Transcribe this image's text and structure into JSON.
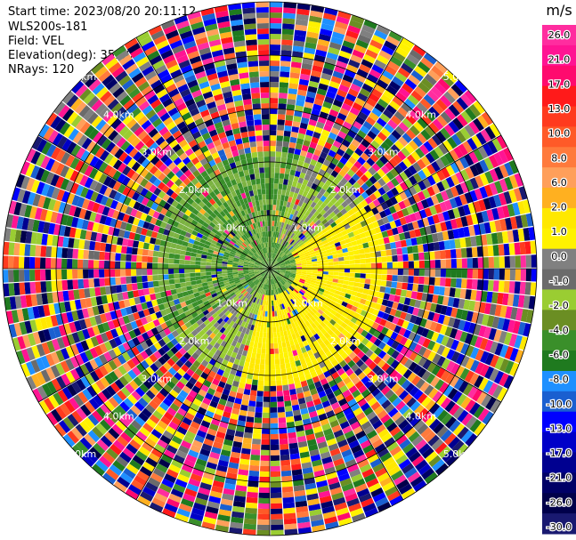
{
  "header": {
    "start_time": "Start time: 2023/08/20 20:11:12",
    "instrument": "WLS200s-181",
    "field": "Field: VEL",
    "elevation": "Elevation(deg): 35.30",
    "nrays": "NRays: 120"
  },
  "colorbar": {
    "unit": "m/s",
    "ticks": [
      "26.0",
      "21.0",
      "17.0",
      "13.0",
      "10.0",
      "8.0",
      "6.0",
      "2.0",
      "1.0",
      "0.0",
      "-1.0",
      "-2.0",
      "-4.0",
      "-6.0",
      "-8.0",
      "-10.0",
      "-13.0",
      "-17.0",
      "-21.0",
      "-26.0",
      "-30.0"
    ],
    "colors": [
      "#ff2d9f",
      "#ff1493",
      "#ff0a6e",
      "#ff1a1a",
      "#ff3a1e",
      "#ff5a28",
      "#ff7a3c",
      "#ff9f5a",
      "#ffb020",
      "#ffe800",
      "#fff200",
      "#808080",
      "#6b6b6b",
      "#9acd32",
      "#6b8e23",
      "#3a8f2a",
      "#1f7a1f",
      "#1e90ff",
      "#1a5fd0",
      "#0000ff",
      "#0000c8",
      "#000090",
      "#000066",
      "#00004a",
      "#191970"
    ]
  },
  "chart_data": {
    "type": "heatmap",
    "title": "",
    "field": "VEL",
    "units": "m/s",
    "nrays": 120,
    "elevation_deg": 35.3,
    "range_rings": [
      {
        "label": "1.0km",
        "range_km": 1.0
      },
      {
        "label": "2.0km",
        "range_km": 2.0
      },
      {
        "label": "3.0km",
        "range_km": 3.0
      },
      {
        "label": "4.0km",
        "range_km": 4.0
      },
      {
        "label": "5.0km",
        "range_km": 5.0
      }
    ],
    "max_range_km": 5.0,
    "clear_air_range_km": [
      0.5,
      2.2
    ]
  }
}
